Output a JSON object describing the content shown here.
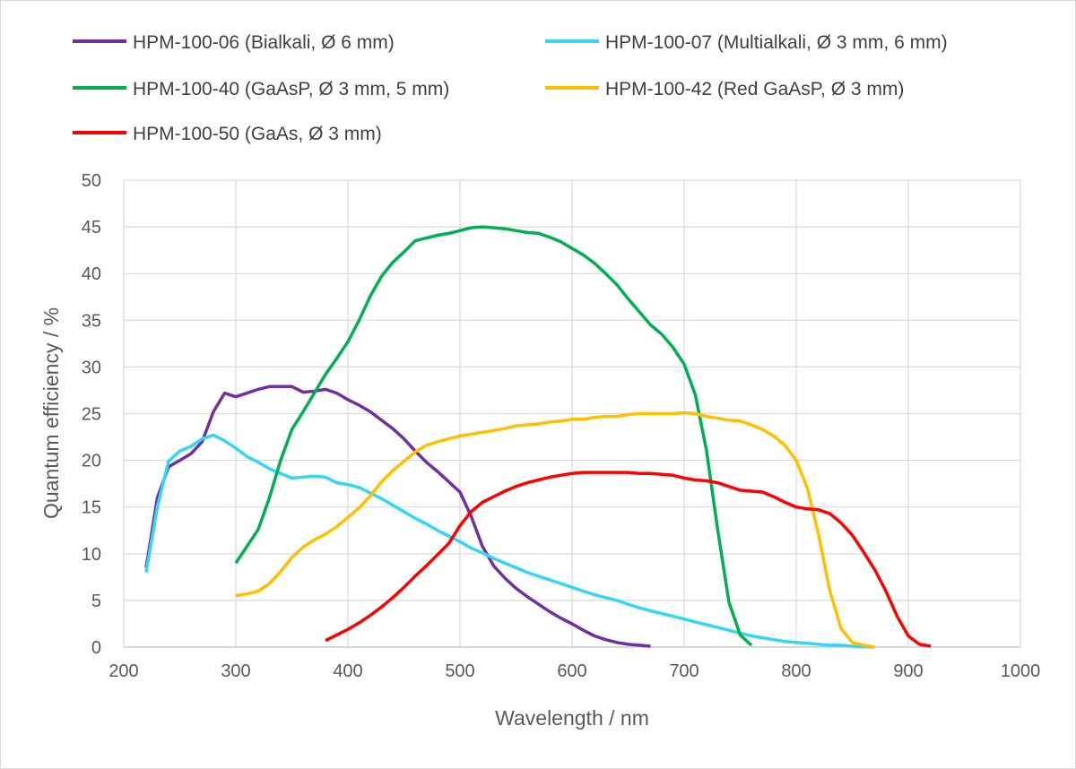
{
  "chart_data": {
    "type": "line",
    "title": "",
    "xlabel": "Wavelength / nm",
    "ylabel": "Quantum efficiency / %",
    "xlim": [
      200,
      1000
    ],
    "ylim": [
      0,
      50
    ],
    "xticks": [
      200,
      300,
      400,
      500,
      600,
      700,
      800,
      900,
      1000
    ],
    "yticks": [
      0,
      5,
      10,
      15,
      20,
      25,
      30,
      35,
      40,
      45,
      50
    ],
    "grid": true,
    "legend_position": "top",
    "series": [
      {
        "name": "HPM-100-06 (Bialkali, Ø 6 mm)",
        "color": "#7030A0",
        "x": [
          220,
          230,
          240,
          250,
          260,
          270,
          280,
          290,
          300,
          310,
          320,
          330,
          340,
          350,
          360,
          370,
          380,
          390,
          400,
          410,
          420,
          430,
          440,
          450,
          460,
          470,
          480,
          490,
          500,
          510,
          520,
          530,
          540,
          550,
          560,
          570,
          580,
          590,
          600,
          610,
          620,
          630,
          640,
          650,
          660,
          670
        ],
        "y": [
          8.5,
          16,
          19.3,
          20,
          20.7,
          22,
          25.2,
          27.2,
          26.8,
          27.2,
          27.6,
          27.9,
          27.9,
          27.9,
          27.3,
          27.4,
          27.6,
          27.2,
          26.5,
          25.9,
          25.2,
          24.3,
          23.4,
          22.3,
          21,
          19.8,
          18.8,
          17.7,
          16.6,
          14,
          10.8,
          8.7,
          7.4,
          6.3,
          5.4,
          4.6,
          3.8,
          3.1,
          2.5,
          1.8,
          1.2,
          0.8,
          0.5,
          0.3,
          0.2,
          0.1
        ]
      },
      {
        "name": "HPM-100-07 (Multialkali, Ø 3 mm, 6 mm)",
        "color": "#33D6F5",
        "x": [
          220,
          230,
          240,
          250,
          260,
          270,
          280,
          290,
          300,
          310,
          320,
          330,
          340,
          350,
          360,
          370,
          380,
          390,
          400,
          410,
          420,
          430,
          440,
          450,
          460,
          470,
          480,
          490,
          500,
          510,
          520,
          530,
          540,
          550,
          560,
          570,
          580,
          590,
          600,
          610,
          620,
          630,
          640,
          650,
          660,
          670,
          680,
          690,
          700,
          710,
          720,
          730,
          740,
          750,
          760,
          770,
          780,
          790,
          800,
          810,
          820,
          830,
          840,
          850,
          860,
          870
        ],
        "y": [
          8,
          15,
          19.9,
          21,
          21.5,
          22.3,
          22.7,
          22.1,
          21.3,
          20.4,
          19.8,
          19.1,
          18.6,
          18.1,
          18.2,
          18.3,
          18.2,
          17.6,
          17.4,
          17.1,
          16.5,
          15.9,
          15.2,
          14.5,
          13.8,
          13.2,
          12.5,
          11.9,
          11.3,
          10.6,
          10.1,
          9.5,
          9,
          8.5,
          8,
          7.6,
          7.2,
          6.8,
          6.4,
          6,
          5.6,
          5.3,
          5,
          4.6,
          4.2,
          3.9,
          3.6,
          3.3,
          3,
          2.7,
          2.4,
          2.1,
          1.8,
          1.5,
          1.2,
          1,
          0.8,
          0.6,
          0.5,
          0.4,
          0.3,
          0.2,
          0.2,
          0.1,
          0.05,
          0
        ]
      },
      {
        "name": "HPM-100-40 (GaAsP, Ø 3 mm, 5 mm)",
        "color": "#00B050",
        "x": [
          300,
          310,
          320,
          330,
          340,
          350,
          360,
          370,
          380,
          390,
          400,
          410,
          420,
          430,
          440,
          450,
          460,
          470,
          480,
          490,
          500,
          510,
          520,
          530,
          540,
          550,
          560,
          570,
          580,
          590,
          600,
          610,
          620,
          630,
          640,
          650,
          660,
          670,
          680,
          690,
          700,
          710,
          720,
          730,
          740,
          750,
          760
        ],
        "y": [
          9,
          10.8,
          12.6,
          16,
          20,
          23.3,
          25.2,
          27.2,
          29.2,
          30.9,
          32.7,
          35,
          37.6,
          39.7,
          41.2,
          42.3,
          43.5,
          43.8,
          44.1,
          44.3,
          44.6,
          44.9,
          45,
          44.9,
          44.8,
          44.6,
          44.4,
          44.3,
          43.9,
          43.4,
          42.7,
          42,
          41.1,
          40,
          38.8,
          37.3,
          35.9,
          34.5,
          33.5,
          32.1,
          30.3,
          27,
          21,
          12.5,
          4.8,
          1.3,
          0.2
        ]
      },
      {
        "name": "HPM-100-42 (Red GaAsP, Ø 3 mm)",
        "color": "#FFC000",
        "x": [
          300,
          310,
          320,
          330,
          340,
          350,
          360,
          370,
          380,
          390,
          400,
          410,
          420,
          430,
          440,
          450,
          460,
          470,
          480,
          490,
          500,
          510,
          520,
          530,
          540,
          550,
          560,
          570,
          580,
          590,
          600,
          610,
          620,
          630,
          640,
          650,
          660,
          670,
          680,
          690,
          700,
          710,
          720,
          730,
          740,
          750,
          760,
          770,
          780,
          790,
          800,
          810,
          820,
          830,
          840,
          850,
          860,
          870
        ],
        "y": [
          5.5,
          5.7,
          6,
          6.8,
          8.1,
          9.6,
          10.7,
          11.5,
          12.1,
          12.9,
          13.9,
          14.9,
          16.2,
          17.7,
          18.9,
          19.9,
          20.9,
          21.6,
          22,
          22.3,
          22.6,
          22.8,
          23,
          23.2,
          23.4,
          23.7,
          23.8,
          23.9,
          24.1,
          24.2,
          24.4,
          24.4,
          24.6,
          24.7,
          24.7,
          24.9,
          25,
          25,
          25,
          25,
          25.1,
          25,
          24.7,
          24.5,
          24.3,
          24.2,
          23.8,
          23.3,
          22.6,
          21.6,
          20,
          17,
          12,
          6,
          2,
          0.5,
          0.2,
          0
        ]
      },
      {
        "name": "HPM-100-50 (GaAs, Ø 3 mm)",
        "color": "#FF0000",
        "x": [
          380,
          390,
          400,
          410,
          420,
          430,
          440,
          450,
          460,
          470,
          480,
          490,
          500,
          510,
          520,
          530,
          540,
          550,
          560,
          570,
          580,
          590,
          600,
          610,
          620,
          630,
          640,
          650,
          660,
          670,
          680,
          690,
          700,
          710,
          720,
          730,
          740,
          750,
          760,
          770,
          780,
          790,
          800,
          810,
          820,
          830,
          840,
          850,
          860,
          870,
          880,
          890,
          900,
          910,
          920
        ],
        "y": [
          0.7,
          1.3,
          1.9,
          2.6,
          3.4,
          4.3,
          5.3,
          6.4,
          7.6,
          8.7,
          9.9,
          11.1,
          13,
          14.5,
          15.5,
          16.1,
          16.7,
          17.2,
          17.6,
          17.9,
          18.2,
          18.4,
          18.6,
          18.7,
          18.7,
          18.7,
          18.7,
          18.7,
          18.6,
          18.6,
          18.5,
          18.4,
          18.1,
          17.9,
          17.8,
          17.6,
          17.2,
          16.8,
          16.7,
          16.6,
          16.1,
          15.5,
          15,
          14.8,
          14.7,
          14.3,
          13.3,
          12,
          10.2,
          8.3,
          6,
          3.3,
          1.2,
          0.3,
          0.1
        ]
      }
    ]
  }
}
